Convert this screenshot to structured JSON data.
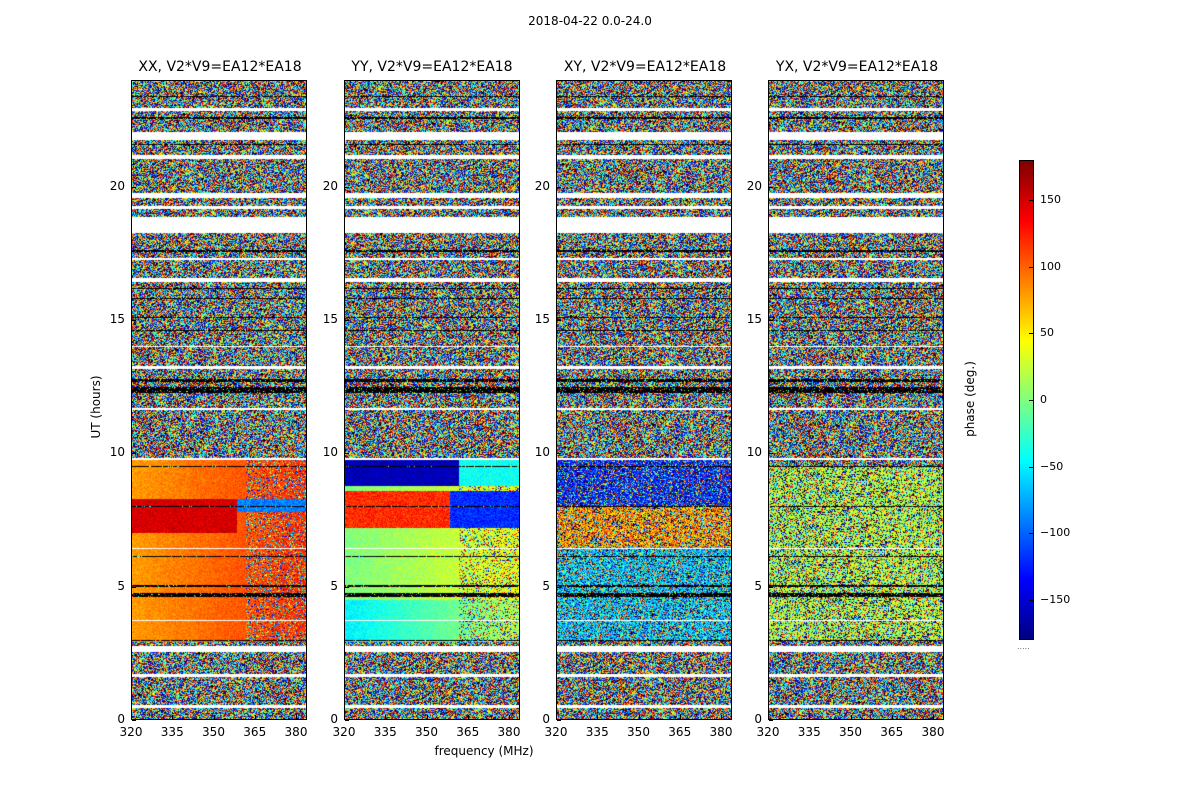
{
  "suptitle": "2018-04-22 0.0-24.0",
  "chart_data": [
    {
      "type": "heatmap",
      "title": "XX, V2*V9=EA12*EA18",
      "xlim": [
        320,
        384
      ],
      "ylim": [
        0,
        24
      ],
      "xticks": [
        "320",
        "335",
        "350",
        "365",
        "380"
      ],
      "yticks": [
        "0",
        "5",
        "10",
        "15",
        "20"
      ],
      "ylabel": "UT (hours)",
      "xlabel": "",
      "structure": "noise above ~9.8h; coherent phase ~60 to 120 deg between ~3 and 9.8h"
    },
    {
      "type": "heatmap",
      "title": "YY, V2*V9=EA12*EA18",
      "xlim": [
        320,
        384
      ],
      "ylim": [
        0,
        24
      ],
      "xticks": [
        "320",
        "335",
        "350",
        "365",
        "380"
      ],
      "yticks": [
        "0",
        "5",
        "10",
        "15",
        "20"
      ],
      "ylabel": "",
      "xlabel": "frequency (MHz)",
      "structure": "noise above ~9.8h; coherent phase ~-20 to 40 deg below 7h, ~100 to 150 deg near 7-8h"
    },
    {
      "type": "heatmap",
      "title": "XY, V2*V9=EA12*EA18",
      "xlim": [
        320,
        384
      ],
      "ylim": [
        0,
        24
      ],
      "xticks": [
        "320",
        "335",
        "350",
        "365",
        "380"
      ],
      "yticks": [
        "0",
        "5",
        "10",
        "15",
        "20"
      ],
      "ylabel": "",
      "xlabel": "",
      "structure": "mostly noise with weak structure between 3h and 10h"
    },
    {
      "type": "heatmap",
      "title": "YX, V2*V9=EA12*EA18",
      "xlim": [
        320,
        384
      ],
      "ylim": [
        0,
        24
      ],
      "xticks": [
        "320",
        "335",
        "350",
        "365",
        "380"
      ],
      "yticks": [
        "0",
        "5",
        "10",
        "15",
        "20"
      ],
      "ylabel": "",
      "xlabel": "",
      "structure": "mostly noise with weak green structure between 3h and 9h"
    }
  ],
  "colorbar": {
    "label": "phase (deg.)",
    "range": [
      -180,
      180
    ],
    "ticks": [
      "150",
      "100",
      "50",
      "0",
      "−50",
      "−100",
      "−150"
    ],
    "tick_values": [
      150,
      100,
      50,
      0,
      -50,
      -100,
      -150
    ],
    "colormap": "jet"
  }
}
